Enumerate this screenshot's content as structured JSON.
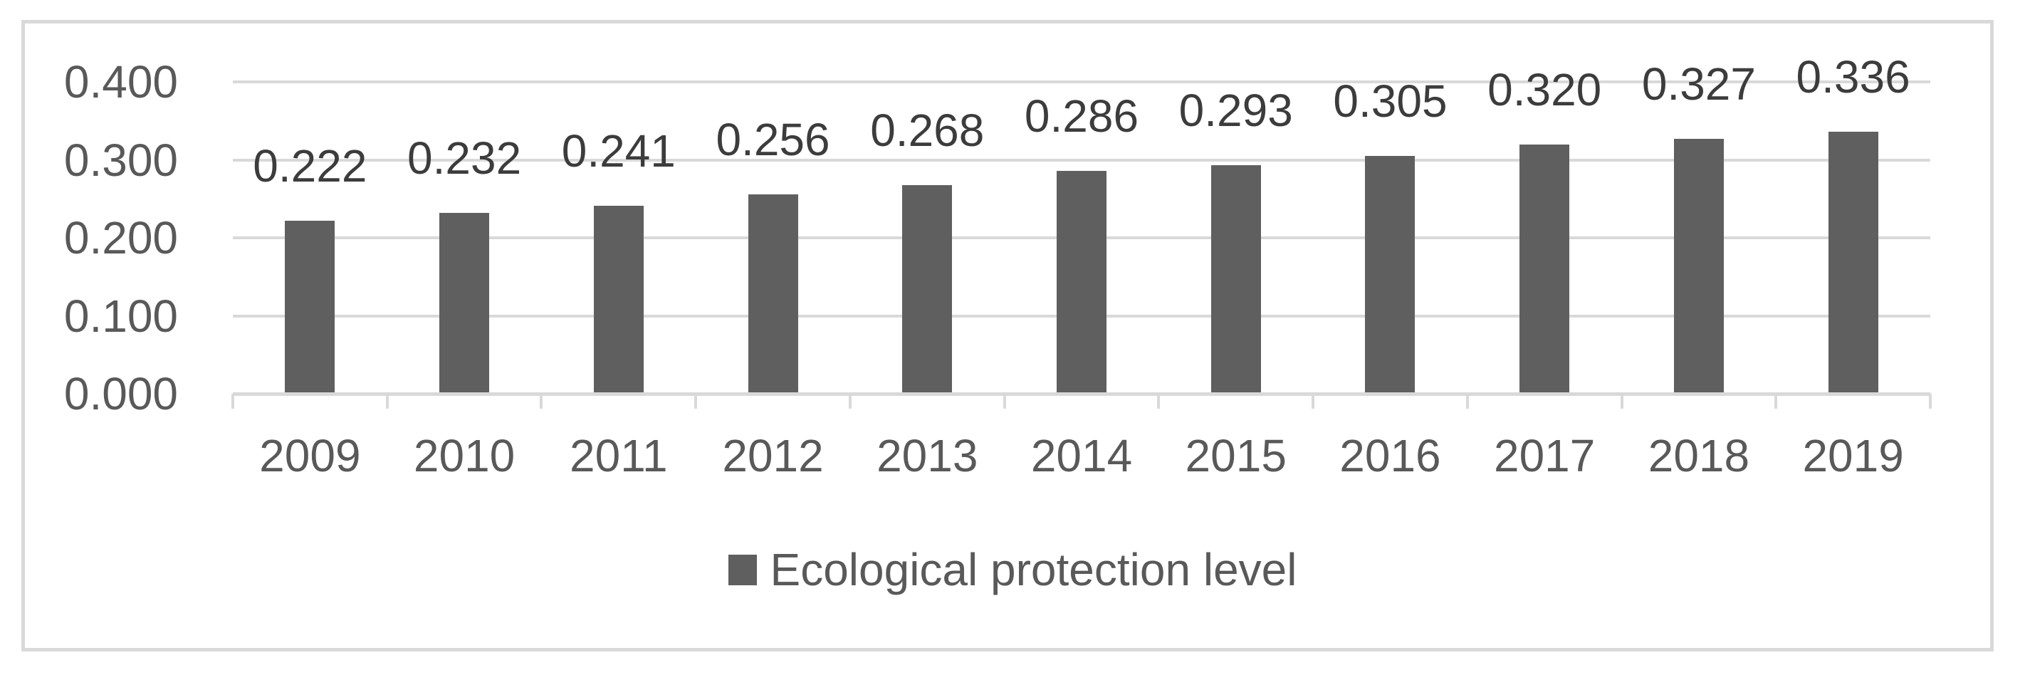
{
  "chart_data": {
    "type": "bar",
    "title": "",
    "categories": [
      "2009",
      "2010",
      "2011",
      "2012",
      "2013",
      "2014",
      "2015",
      "2016",
      "2017",
      "2018",
      "2019"
    ],
    "series": [
      {
        "name": "Ecological protection level",
        "values": [
          0.222,
          0.232,
          0.241,
          0.256,
          0.268,
          0.286,
          0.293,
          0.305,
          0.32,
          0.327,
          0.336
        ],
        "data_labels": [
          "0.222",
          "0.232",
          "0.241",
          "0.256",
          "0.268",
          "0.286",
          "0.293",
          "0.305",
          "0.320",
          "0.327",
          "0.336"
        ]
      }
    ],
    "xlabel": "",
    "ylabel": "",
    "ylim": [
      0.0,
      0.4
    ],
    "y_ticks": [
      {
        "value": 0.0,
        "label": "0.000"
      },
      {
        "value": 0.1,
        "label": "0.100"
      },
      {
        "value": 0.2,
        "label": "0.200"
      },
      {
        "value": 0.3,
        "label": "0.300"
      },
      {
        "value": 0.4,
        "label": "0.400"
      }
    ],
    "grid": true,
    "legend_position": "bottom",
    "data_labels_shown": true
  },
  "legend": {
    "label": "Ecological protection level",
    "marker": "square-icon"
  },
  "colors": {
    "bar": "#5f5f5f",
    "gridline": "#d9d9d9",
    "axis_line": "#d9d9d9",
    "frame_border": "#d9d9d9",
    "axis_text": "#595959",
    "data_label_text": "#3c3c3c",
    "legend_text": "#595959",
    "background": "#ffffff"
  }
}
